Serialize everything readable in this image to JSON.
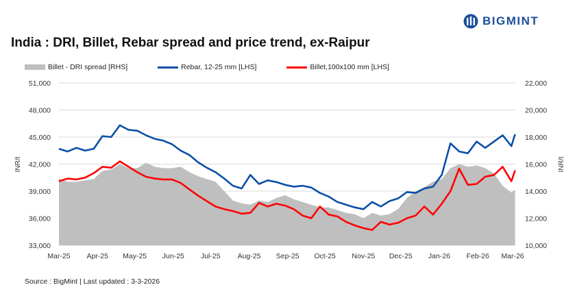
{
  "brand": {
    "name": "BIGMINT",
    "color": "#1b4f9c"
  },
  "chart_data": {
    "type": "line",
    "title": "India : DRI, Billet, Rebar spread and price trend, ex-Raipur",
    "source": "Source : BigMint | Last updated : 3-3-2026",
    "ylabel_left": "INR/t",
    "ylabel_right": "INR/t",
    "ylim_left": [
      33000,
      51000
    ],
    "ylim_right": [
      10000,
      22000
    ],
    "yticks_left": [
      "33,000",
      "36,000",
      "39,000",
      "42,000",
      "45,000",
      "48,000",
      "51,000"
    ],
    "yticks_right": [
      "10,000",
      "12,000",
      "14,000",
      "16,000",
      "18,000",
      "20,000",
      "22,000"
    ],
    "xticks": [
      {
        "label": "Mar-25",
        "date": "2025-03-01"
      },
      {
        "label": "Apr-25",
        "date": "2025-04-01"
      },
      {
        "label": "May-25",
        "date": "2025-05-01"
      },
      {
        "label": "Jun-25",
        "date": "2025-06-01"
      },
      {
        "label": "Jul-25",
        "date": "2025-07-01"
      },
      {
        "label": "Aug-25",
        "date": "2025-08-01"
      },
      {
        "label": "Sep-25",
        "date": "2025-09-01"
      },
      {
        "label": "Oct-25",
        "date": "2025-10-01"
      },
      {
        "label": "Nov-25",
        "date": "2025-11-01"
      },
      {
        "label": "Dec-25",
        "date": "2025-12-01"
      },
      {
        "label": "Jan-26",
        "date": "2026-01-01"
      },
      {
        "label": "Feb-26",
        "date": "2026-02-01"
      },
      {
        "label": "Mar-26",
        "date": "2026-03-01"
      }
    ],
    "grid": true,
    "legend_position": "top",
    "x": [
      "2025-03-01",
      "2025-03-08",
      "2025-03-15",
      "2025-03-22",
      "2025-03-29",
      "2025-04-05",
      "2025-04-12",
      "2025-04-19",
      "2025-04-26",
      "2025-05-03",
      "2025-05-10",
      "2025-05-17",
      "2025-05-24",
      "2025-05-31",
      "2025-06-07",
      "2025-06-14",
      "2025-06-21",
      "2025-06-28",
      "2025-07-05",
      "2025-07-12",
      "2025-07-19",
      "2025-07-26",
      "2025-08-02",
      "2025-08-09",
      "2025-08-16",
      "2025-08-23",
      "2025-08-30",
      "2025-09-06",
      "2025-09-13",
      "2025-09-20",
      "2025-09-27",
      "2025-10-04",
      "2025-10-11",
      "2025-10-18",
      "2025-10-25",
      "2025-11-01",
      "2025-11-08",
      "2025-11-15",
      "2025-11-22",
      "2025-11-29",
      "2025-12-06",
      "2025-12-13",
      "2025-12-20",
      "2025-12-27",
      "2026-01-03",
      "2026-01-10",
      "2026-01-17",
      "2026-01-24",
      "2026-01-31",
      "2026-02-07",
      "2026-02-14",
      "2026-02-21",
      "2026-02-28",
      "2026-03-03"
    ],
    "series": [
      {
        "name": "Billet - DRI spread  [RHS]",
        "type": "area",
        "axis": "right",
        "color": "#bfbfbf",
        "values": [
          14900,
          14700,
          14700,
          14800,
          14900,
          15500,
          15600,
          16000,
          15700,
          15700,
          16100,
          15800,
          15700,
          15700,
          15800,
          15400,
          15100,
          14900,
          14700,
          14000,
          13300,
          13100,
          13000,
          13300,
          13200,
          13500,
          13700,
          13400,
          13200,
          13000,
          12800,
          12800,
          12600,
          12400,
          12300,
          12000,
          12400,
          12200,
          12300,
          12700,
          13500,
          14000,
          14300,
          14700,
          14900,
          15700,
          16000,
          15800,
          15900,
          15700,
          15300,
          14400,
          13900,
          14100
        ]
      },
      {
        "name": "Rebar, 12-25 mm [LHS]",
        "type": "line",
        "axis": "left",
        "color": "#0a4fa8",
        "values": [
          43700,
          43400,
          43800,
          43500,
          43700,
          45100,
          45000,
          46300,
          45800,
          45700,
          45200,
          44800,
          44600,
          44200,
          43500,
          43000,
          42200,
          41600,
          41100,
          40400,
          39600,
          39300,
          40800,
          39800,
          40200,
          40000,
          39700,
          39500,
          39600,
          39400,
          38800,
          38400,
          37800,
          37500,
          37200,
          37000,
          37800,
          37300,
          37900,
          38200,
          38900,
          38800,
          39300,
          39500,
          40800,
          44300,
          43400,
          43200,
          44500,
          43800,
          44500,
          45200,
          44000,
          45300
        ]
      },
      {
        "name": "Billet,100x100 mm [LHS]",
        "type": "line",
        "axis": "left",
        "color": "#ff0000",
        "values": [
          40100,
          40400,
          40300,
          40500,
          41000,
          41700,
          41600,
          42300,
          41700,
          41100,
          40600,
          40400,
          40300,
          40300,
          39900,
          39200,
          38500,
          37900,
          37300,
          37000,
          36800,
          36500,
          36600,
          37700,
          37300,
          37600,
          37400,
          37000,
          36300,
          36000,
          37300,
          36400,
          36200,
          35600,
          35200,
          34900,
          34700,
          35600,
          35300,
          35500,
          36000,
          36300,
          37300,
          36400,
          37600,
          39000,
          41500,
          39700,
          39800,
          40600,
          40800,
          41700,
          40100,
          41300
        ]
      }
    ]
  }
}
